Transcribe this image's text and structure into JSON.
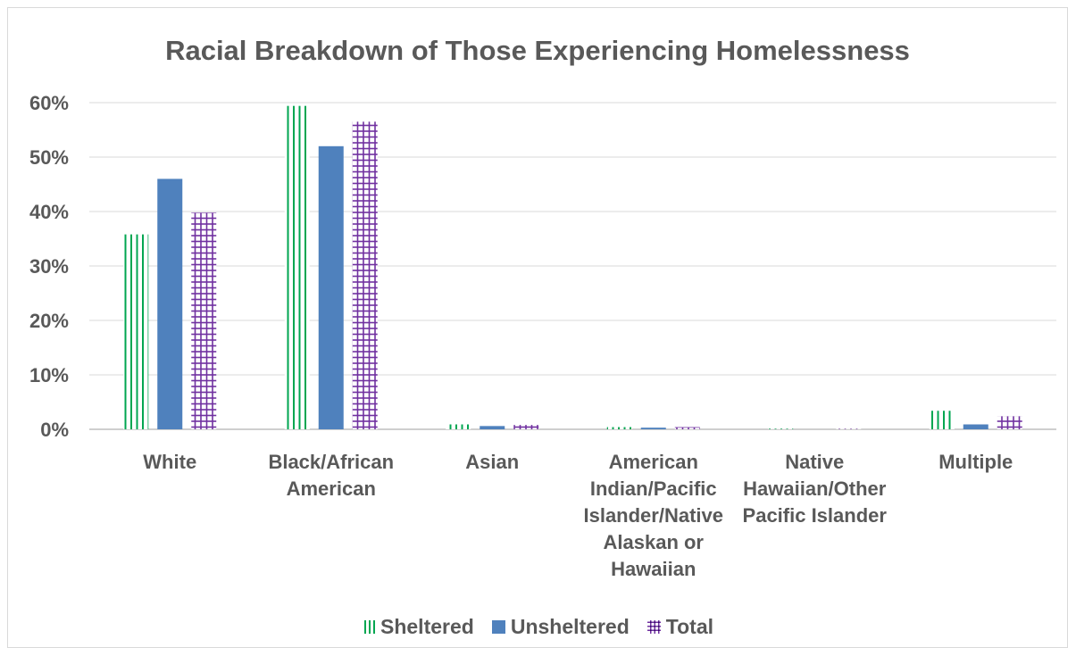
{
  "chart_data": {
    "type": "bar",
    "title": "Racial Breakdown of Those Experiencing Homelessness",
    "xlabel": "",
    "ylabel": "",
    "categories": [
      [
        "White"
      ],
      [
        "Black/African",
        "American"
      ],
      [
        "Asian"
      ],
      [
        "American",
        "Indian/Pacific",
        "Islander/Native",
        "Alaskan or",
        "Hawaiian"
      ],
      [
        "Native",
        "Hawaiian/Other",
        "Pacific Islander"
      ],
      [
        "Multiple"
      ]
    ],
    "series": [
      {
        "name": "Sheltered",
        "color": "#00a651",
        "pattern": "vertical-lines",
        "values": [
          35.8,
          59.4,
          0.9,
          0.4,
          0.1,
          3.4
        ]
      },
      {
        "name": "Unsheltered",
        "color": "#4f81bd",
        "pattern": "solid",
        "values": [
          46.0,
          52.0,
          0.6,
          0.3,
          0.0,
          0.9
        ]
      },
      {
        "name": "Total",
        "color": "#7030a0",
        "pattern": "grid",
        "values": [
          39.8,
          56.5,
          0.8,
          0.4,
          0.1,
          2.4
        ]
      }
    ],
    "ylim": [
      0,
      60
    ],
    "yticks": [
      0,
      10,
      20,
      30,
      40,
      50,
      60
    ],
    "ytick_labels": [
      "0%",
      "10%",
      "20%",
      "30%",
      "40%",
      "50%",
      "60%"
    ],
    "grid": true,
    "legend_position": "bottom"
  }
}
